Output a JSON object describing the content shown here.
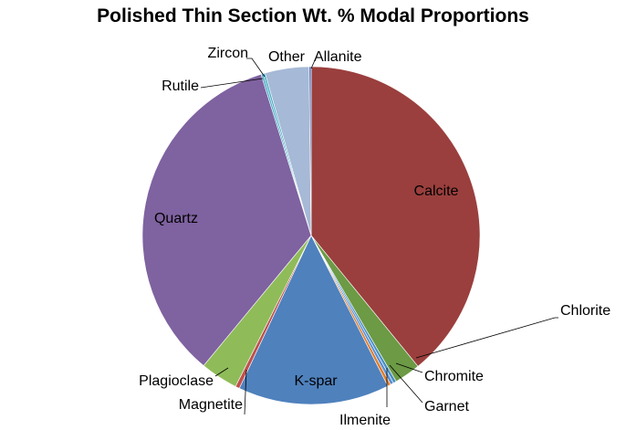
{
  "chart_data": {
    "type": "pie",
    "title": "Polished Thin Section Wt. % Modal Proportions",
    "categories": [
      "Calcite",
      "Chlorite",
      "Chromite",
      "Garnet",
      "Ilmenite",
      "K-spar",
      "Magnetite",
      "Plagioclase",
      "Quartz",
      "Rutile",
      "Zircon",
      "Other",
      "Allanite"
    ],
    "values": [
      39.1,
      2.5,
      0.3,
      0.3,
      0.3,
      14.5,
      0.4,
      3.6,
      34.2,
      0.2,
      0.2,
      4.2,
      0.2
    ],
    "colors": [
      "#9a3f3d",
      "#6c9a45",
      "#4a8fc4",
      "#5b8fd0",
      "#e07c2a",
      "#4f81bd",
      "#c0504d",
      "#8fbc59",
      "#7f62a0",
      "#4bacc6",
      "#4bacc6",
      "#a6b9d6",
      "#5b7fc8"
    ],
    "start_angle_deg": 0,
    "direction": "clockwise",
    "legend": "none"
  }
}
